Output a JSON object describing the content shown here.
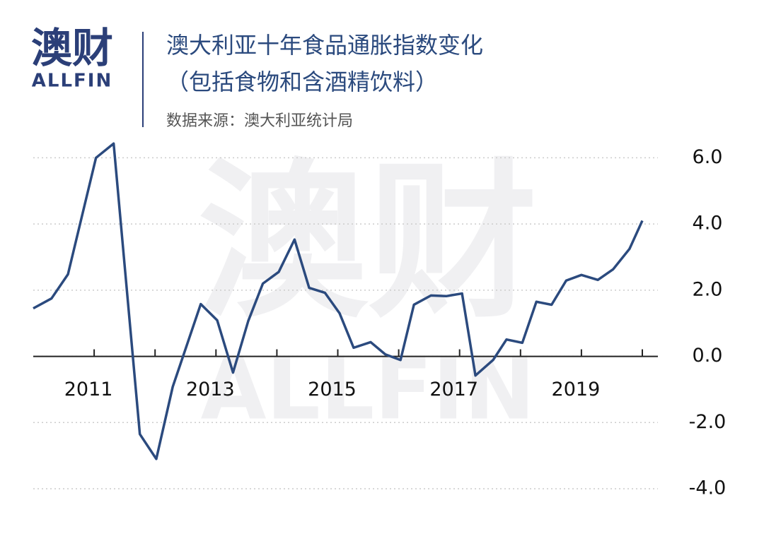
{
  "logo": {
    "name": "澳财",
    "brand": "ALLFIN"
  },
  "chart_data": {
    "type": "line",
    "title": "澳大利亚十年食品通胀指数变化",
    "subtitle": "（包括食物和含酒精饮料）",
    "source": "数据来源：澳大利亚统计局",
    "x": [
      2010.0,
      2010.3,
      2010.57,
      2011.03,
      2011.32,
      2011.75,
      2012.02,
      2012.29,
      2012.75,
      2013.02,
      2013.28,
      2013.53,
      2013.77,
      2014.03,
      2014.29,
      2014.53,
      2014.79,
      2015.03,
      2015.26,
      2015.54,
      2015.78,
      2016.03,
      2016.25,
      2016.53,
      2016.78,
      2017.04,
      2017.26,
      2017.55,
      2017.77,
      2018.03,
      2018.26,
      2018.51,
      2018.75,
      2019.0,
      2019.27,
      2019.52,
      2019.79,
      2020.0
    ],
    "series": [
      {
        "color": "#2b4a7e",
        "values": [
          1.45,
          1.75,
          2.48,
          6.0,
          6.43,
          -2.35,
          -3.1,
          -0.92,
          1.58,
          1.09,
          -0.49,
          1.07,
          2.2,
          2.55,
          3.53,
          2.07,
          1.92,
          1.3,
          0.26,
          0.43,
          0.06,
          -0.11,
          1.56,
          1.84,
          1.82,
          1.9,
          -0.58,
          -0.11,
          0.51,
          0.41,
          1.65,
          1.56,
          2.29,
          2.46,
          2.31,
          2.63,
          3.25,
          4.1
        ]
      }
    ],
    "xlim": [
      2010,
      2020
    ],
    "xticks": [
      2011,
      2013,
      2015,
      2017,
      2019
    ],
    "xminorticks": [
      2012,
      2014,
      2016,
      2018,
      2020
    ],
    "ylim": [
      -4,
      6.5
    ],
    "yticks": [
      {
        "value": -4,
        "label": "-4.0"
      },
      {
        "value": -2,
        "label": "-2.0"
      },
      {
        "value": 0,
        "label": "0.0"
      },
      {
        "value": 2,
        "label": "2.0"
      },
      {
        "value": 4,
        "label": "4.0"
      },
      {
        "value": 6,
        "label": "6.0"
      }
    ],
    "grid": true
  }
}
